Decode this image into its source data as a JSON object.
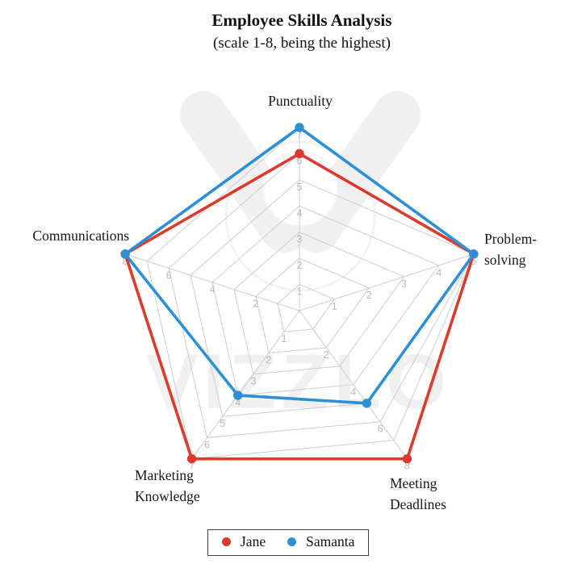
{
  "chart_data": {
    "type": "radar",
    "title": "Employee Skills Analysis",
    "subtitle": "(scale 1-8, being the highest)",
    "scale_note": "each spoke is scaled independently to its own maximum",
    "axes": [
      {
        "label": "Punctuality",
        "display": "Punctuality",
        "max": 7,
        "ticks": [
          1,
          2,
          3,
          4,
          5,
          6,
          7
        ]
      },
      {
        "label": "Problem-solving",
        "display": "Problem-\nsolving",
        "max": 5,
        "ticks": [
          1,
          2,
          3,
          4,
          5
        ]
      },
      {
        "label": "Meeting Deadlines",
        "display": "Meeting\nDeadlines",
        "max": 8,
        "ticks": [
          2,
          4,
          6,
          8
        ]
      },
      {
        "label": "Marketing Knowledge",
        "display": "Marketing\nKnowledge",
        "max": 7,
        "ticks": [
          1,
          2,
          3,
          4,
          5,
          6,
          7
        ]
      },
      {
        "label": "Communications",
        "display": "Communications",
        "max": 8,
        "ticks": [
          2,
          4,
          6,
          8
        ]
      }
    ],
    "series": [
      {
        "name": "Jane",
        "color": "#dc3a2c",
        "values": [
          6,
          5,
          8,
          7,
          8
        ]
      },
      {
        "name": "Samanta",
        "color": "#2e90d4",
        "values": [
          7,
          5,
          5,
          4,
          8
        ]
      }
    ],
    "grid_color": "#cccccc",
    "tick_label_color": "#b9b9b9",
    "legend_position": "bottom",
    "watermark": {
      "text": "VIZZLO",
      "color": "#f0f0f0"
    }
  }
}
